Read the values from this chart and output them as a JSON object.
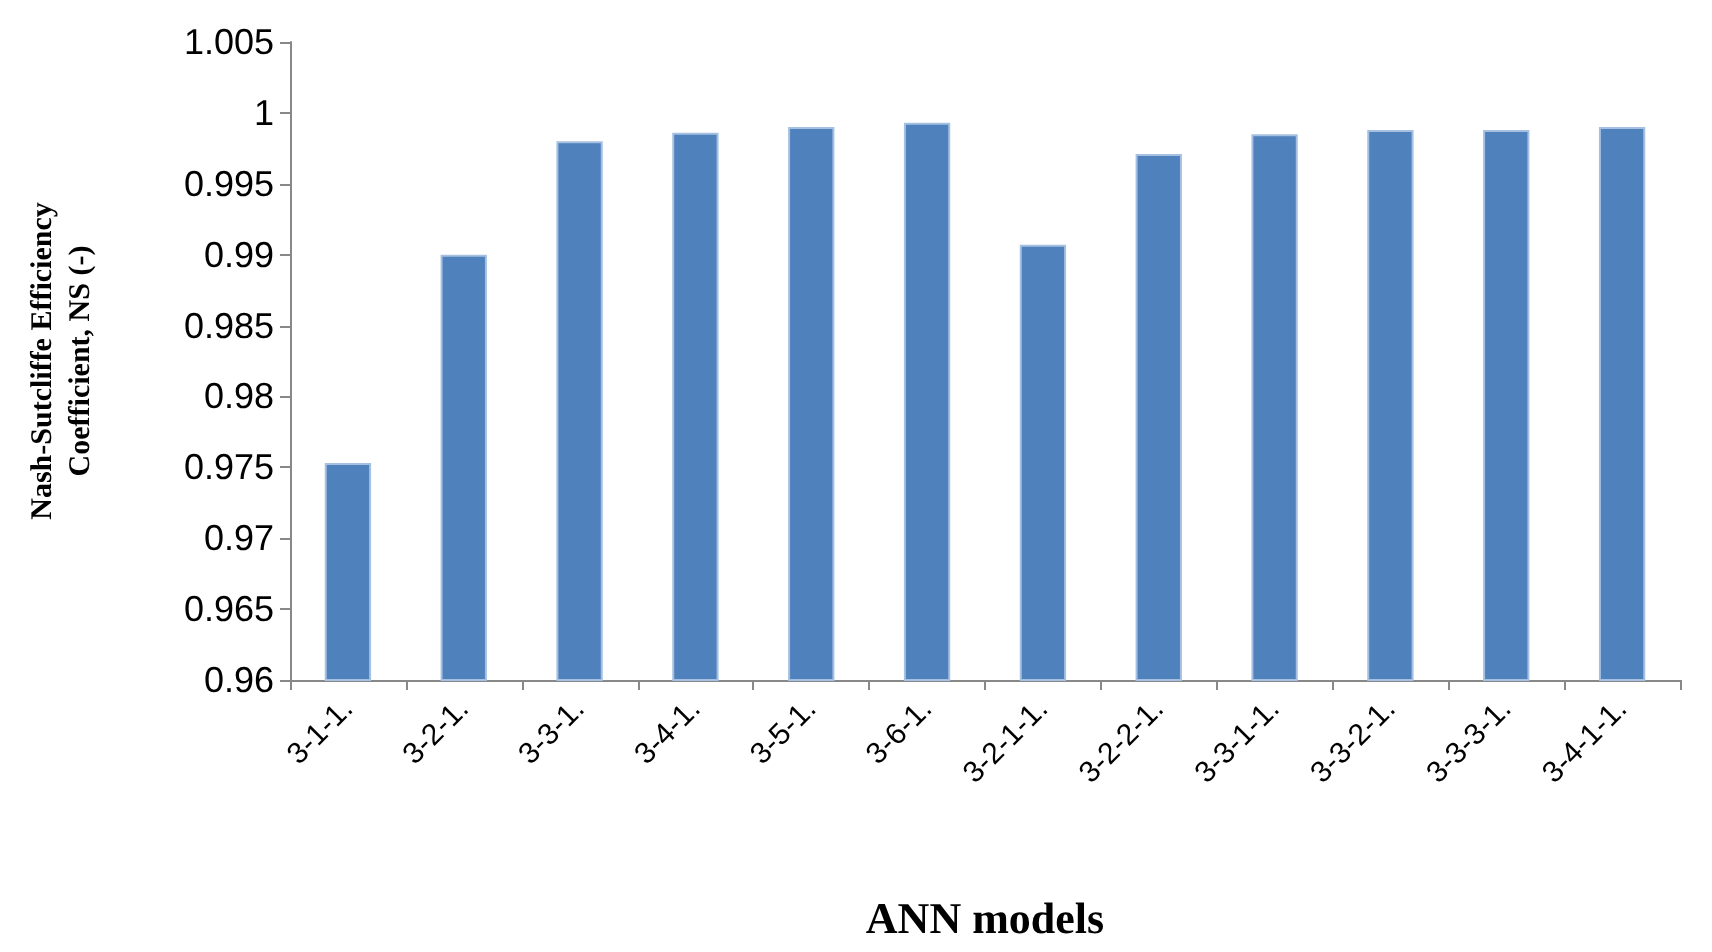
{
  "chart_data": {
    "type": "bar",
    "xlabel": "ANN models",
    "ylabel": "Nash-Sutcliffe Efficiency\nCoefficient, NS (-)",
    "categories": [
      "3-1-1.",
      "3-2-1.",
      "3-3-1.",
      "3-4-1.",
      "3-5-1.",
      "3-6-1.",
      "3-2-1-1.",
      "3-2-2-1.",
      "3-3-1-1.",
      "3-3-2-1.",
      "3-3-3-1.",
      "3-4-1-1."
    ],
    "values": [
      0.9753,
      0.99,
      0.998,
      0.9986,
      0.999,
      0.9993,
      0.9907,
      0.9971,
      0.9985,
      0.9988,
      0.9988,
      0.999
    ],
    "color": "#4f81bd",
    "ylim": [
      0.96,
      1.005
    ],
    "yticks": [
      0.96,
      0.965,
      0.97,
      0.975,
      0.98,
      0.985,
      0.99,
      0.995,
      1,
      1.005
    ],
    "grid": false
  }
}
